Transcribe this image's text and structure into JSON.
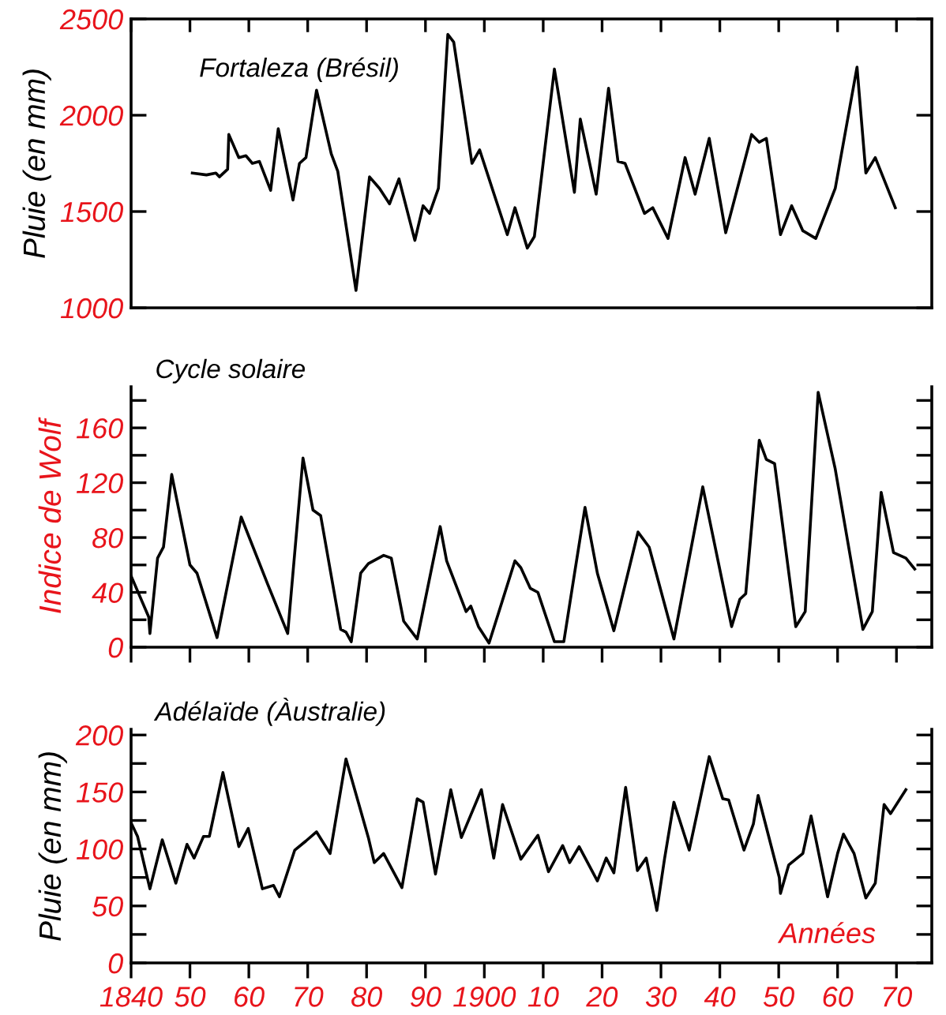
{
  "chart_data": [
    {
      "type": "line",
      "title": "Fortaleza (Brésil)",
      "ylabel": "Pluie (en mm)",
      "tick_labels": "y",
      "grid": false,
      "legend": false,
      "marker": "none",
      "line_style": "solid",
      "x": [
        1850.4,
        1852.8,
        1854.4,
        1855.0,
        1856.4,
        1856.6,
        1858.3,
        1859.5,
        1860.6,
        1861.8,
        1863.7,
        1865.0,
        1867.5,
        1868.6,
        1869.7,
        1871.5,
        1874.0,
        1875.1,
        1878.2,
        1880.5,
        1882.2,
        1883.9,
        1885.5,
        1888.2,
        1889.6,
        1890.7,
        1892.2,
        1893.8,
        1894.8,
        1897.9,
        1899.2,
        1903.9,
        1905.2,
        1907.3,
        1908.5,
        1911.9,
        1915.3,
        1916.3,
        1919.0,
        1921.1,
        1922.7,
        1923.9,
        1927.2,
        1928.6,
        1931.2,
        1934.1,
        1935.8,
        1938.2,
        1941.0,
        1945.4,
        1946.7,
        1947.9,
        1950.3,
        1952.2,
        1954.1,
        1956.3,
        1959.6,
        1963.3,
        1964.8,
        1966.4,
        1969.8
      ],
      "series": [
        {
          "color": "#000000",
          "values": [
            1700,
            1690,
            1700,
            1680,
            1720,
            1900,
            1780,
            1790,
            1750,
            1760,
            1610,
            1930,
            1560,
            1750,
            1780,
            2130,
            1800,
            1710,
            1090,
            1680,
            1620,
            1540,
            1670,
            1350,
            1530,
            1490,
            1620,
            2420,
            2380,
            1750,
            1820,
            1380,
            1520,
            1310,
            1370,
            2240,
            1600,
            1980,
            1590,
            2140,
            1760,
            1750,
            1490,
            1520,
            1360,
            1780,
            1590,
            1880,
            1390,
            1900,
            1860,
            1880,
            1380,
            1530,
            1400,
            1360,
            1620,
            2250,
            1700,
            1780,
            1520
          ]
        }
      ],
      "xlim": [
        1840,
        1976
      ],
      "ylim": [
        1000,
        2500
      ],
      "yticks": [
        1000,
        1500,
        2000,
        2500
      ],
      "xticks": [
        1840,
        1850,
        1860,
        1870,
        1880,
        1890,
        1900,
        1910,
        1920,
        1930,
        1940,
        1950,
        1960,
        1970
      ]
    },
    {
      "type": "line",
      "title": "Cycle solaire",
      "ylabel": "Indice de Wolf",
      "tick_labels": "y",
      "grid": false,
      "legend": false,
      "marker": "none",
      "line_style": "solid",
      "x": [
        1840.0,
        1843.0,
        1843.2,
        1844.5,
        1845.5,
        1846.9,
        1850.0,
        1851.2,
        1854.6,
        1858.7,
        1863.2,
        1866.6,
        1869.2,
        1870.9,
        1872.2,
        1875.6,
        1876.5,
        1877.4,
        1879.0,
        1880.3,
        1882.9,
        1884.2,
        1886.3,
        1888.6,
        1892.5,
        1893.6,
        1896.9,
        1897.7,
        1899.0,
        1900.8,
        1905.2,
        1906.2,
        1907.8,
        1909.1,
        1911.9,
        1913.5,
        1915.4,
        1917.1,
        1919.2,
        1922.0,
        1926.1,
        1928.0,
        1932.2,
        1937.1,
        1942.0,
        1943.4,
        1944.4,
        1946.7,
        1947.9,
        1949.3,
        1952.9,
        1954.5,
        1956.7,
        1959.6,
        1961.0,
        1964.3,
        1965.9,
        1967.4,
        1969.5,
        1971.6,
        1973.1
      ],
      "series": [
        {
          "color": "#000000",
          "values": [
            52,
            22,
            10,
            65,
            73,
            126,
            60,
            54,
            7,
            95,
            46,
            10,
            138,
            100,
            96,
            13,
            11,
            4,
            54,
            61,
            67,
            65,
            19,
            6,
            88,
            63,
            26,
            30,
            15,
            3,
            63,
            58,
            43,
            40,
            4,
            4,
            56,
            102,
            54,
            12,
            84,
            73,
            6,
            117,
            15,
            35,
            39,
            151,
            137,
            134,
            15,
            26,
            186,
            130,
            95,
            13,
            26,
            113,
            69,
            65,
            57
          ]
        }
      ],
      "xlim": [
        1840,
        1976
      ],
      "ylim": [
        0,
        190
      ],
      "yticks": [
        0,
        {
          "value": 20,
          "label": null
        },
        40,
        {
          "value": 60,
          "label": null
        },
        80,
        {
          "value": 100,
          "label": null
        },
        120,
        {
          "value": 140,
          "label": null
        },
        160,
        {
          "value": 180,
          "label": null
        }
      ],
      "xticks": [
        1840,
        1850,
        1860,
        1870,
        1880,
        1890,
        1900,
        1910,
        1920,
        1930,
        1940,
        1950,
        1960,
        1970
      ]
    },
    {
      "type": "line",
      "title": "Adélaïde (Àustralie)",
      "ylabel": "Pluie (en mm)",
      "xlabel": "Années",
      "grid": false,
      "legend": false,
      "marker": "none",
      "line_style": "solid",
      "x": [
        1840.0,
        1841.1,
        1843.2,
        1845.3,
        1847.6,
        1849.5,
        1850.7,
        1852.3,
        1853.3,
        1855.6,
        1858.3,
        1859.9,
        1862.3,
        1864.2,
        1865.2,
        1867.8,
        1869.7,
        1871.5,
        1873.8,
        1876.5,
        1880.3,
        1881.3,
        1882.9,
        1886.0,
        1888.6,
        1889.6,
        1891.7,
        1894.3,
        1896.1,
        1899.5,
        1901.6,
        1903.1,
        1906.2,
        1909.1,
        1910.9,
        1913.3,
        1914.5,
        1916.1,
        1919.2,
        1920.7,
        1922.0,
        1924.0,
        1926.0,
        1927.5,
        1929.3,
        1930.6,
        1932.2,
        1934.8,
        1938.2,
        1940.5,
        1941.5,
        1944.1,
        1945.7,
        1946.5,
        1950.1,
        1950.3,
        1951.7,
        1954.1,
        1955.5,
        1958.3,
        1960.0,
        1961.0,
        1962.8,
        1964.8,
        1966.4,
        1967.9,
        1969.0,
        1971.6
      ],
      "series": [
        {
          "color": "#000000",
          "values": [
            123,
            111,
            65,
            108,
            70,
            104,
            92,
            111,
            111,
            167,
            102,
            118,
            65,
            68,
            58,
            99,
            107,
            115,
            96,
            179,
            110,
            88,
            96,
            66,
            144,
            141,
            78,
            152,
            110,
            152,
            92,
            139,
            91,
            112,
            80,
            103,
            88,
            102,
            72,
            92,
            79,
            154,
            81,
            92,
            46,
            91,
            141,
            99,
            181,
            144,
            143,
            99,
            122,
            147,
            75,
            61,
            86,
            96,
            129,
            58,
            96,
            113,
            96,
            57,
            70,
            139,
            131,
            152
          ]
        }
      ],
      "xlim": [
        1840,
        1976
      ],
      "ylim": [
        0,
        205
      ],
      "yticks": [
        0,
        {
          "value": 25,
          "label": null
        },
        50,
        {
          "value": 75,
          "label": null
        },
        100,
        {
          "value": 125,
          "label": null
        },
        150,
        {
          "value": 175,
          "label": null
        },
        200
      ],
      "xticks": [
        {
          "value": 1840,
          "label": "1840"
        },
        {
          "value": 1850,
          "label": "50"
        },
        {
          "value": 1860,
          "label": "60"
        },
        {
          "value": 1870,
          "label": "70"
        },
        {
          "value": 1880,
          "label": "80"
        },
        {
          "value": 1890,
          "label": "90"
        },
        {
          "value": 1900,
          "label": "1900"
        },
        {
          "value": 1910,
          "label": "10"
        },
        {
          "value": 1920,
          "label": "20"
        },
        {
          "value": 1930,
          "label": "30"
        },
        {
          "value": 1940,
          "label": "40"
        },
        {
          "value": 1950,
          "label": "50"
        },
        {
          "value": 1960,
          "label": "60"
        },
        {
          "value": 1970,
          "label": "70"
        }
      ]
    }
  ]
}
